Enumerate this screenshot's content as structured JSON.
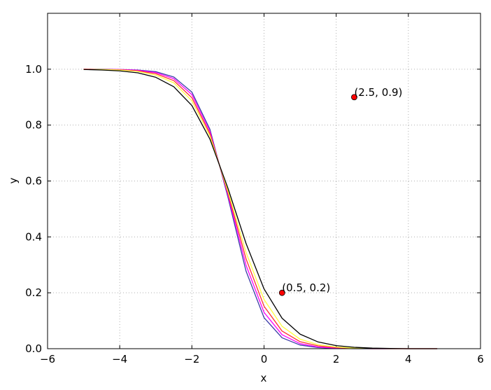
{
  "chart_data": {
    "type": "line",
    "xlabel": "x",
    "ylabel": "y",
    "x": [
      -5,
      -4.5,
      -4,
      -3.5,
      -3,
      -2.5,
      -2,
      -1.5,
      -1,
      -0.5,
      0,
      0.5,
      1,
      1.5,
      2,
      2.5,
      3,
      3.5,
      4,
      4.5,
      4.8
    ],
    "series": [
      {
        "color": "#3a3aa8",
        "values": [
          1.0,
          1.0,
          0.999,
          0.997,
          0.991,
          0.972,
          0.918,
          0.785,
          0.542,
          0.278,
          0.111,
          0.039,
          0.013,
          0.004,
          0.001,
          0.0,
          0.0,
          0.0,
          0.0,
          0.0,
          0.0
        ]
      },
      {
        "color": "#ff00ff",
        "values": [
          1.0,
          0.999,
          0.999,
          0.996,
          0.988,
          0.966,
          0.909,
          0.777,
          0.55,
          0.299,
          0.13,
          0.05,
          0.018,
          0.006,
          0.002,
          0.001,
          0.0,
          0.0,
          0.0,
          0.0,
          0.0
        ]
      },
      {
        "color": "#ff3030",
        "values": [
          1.0,
          0.999,
          0.998,
          0.994,
          0.984,
          0.959,
          0.898,
          0.769,
          0.557,
          0.322,
          0.152,
          0.063,
          0.025,
          0.01,
          0.004,
          0.001,
          0.0,
          0.0,
          0.0,
          0.0,
          0.0
        ]
      },
      {
        "color": "#ffff40",
        "values": [
          0.999,
          0.999,
          0.997,
          0.992,
          0.979,
          0.951,
          0.887,
          0.761,
          0.564,
          0.345,
          0.176,
          0.08,
          0.034,
          0.014,
          0.006,
          0.002,
          0.001,
          0.0,
          0.0,
          0.0,
          0.0
        ]
      },
      {
        "color": "#000000",
        "values": [
          0.999,
          0.997,
          0.994,
          0.987,
          0.971,
          0.937,
          0.87,
          0.75,
          0.574,
          0.377,
          0.214,
          0.109,
          0.052,
          0.024,
          0.011,
          0.005,
          0.002,
          0.001,
          0.0,
          0.0,
          0.0
        ]
      }
    ],
    "annotations": [
      {
        "x": 0.5,
        "y": 0.2,
        "text": "(0.5, 0.2)",
        "color": "#ff0000"
      },
      {
        "x": 2.5,
        "y": 0.9,
        "text": "(2.5, 0.9)",
        "color": "#ff0000"
      }
    ],
    "xlim": [
      -6,
      6
    ],
    "xticks": [
      {
        "value": -6,
        "label": "−6"
      },
      {
        "value": -4,
        "label": "−4"
      },
      {
        "value": -2,
        "label": "−2"
      },
      0,
      2,
      4,
      6
    ],
    "ylim": [
      0,
      1.2
    ],
    "yticks": [
      {
        "value": 0,
        "label": "0.0"
      },
      0.2,
      0.4,
      0.6,
      0.8,
      {
        "value": 1,
        "label": "1.0"
      }
    ],
    "grid": true
  }
}
